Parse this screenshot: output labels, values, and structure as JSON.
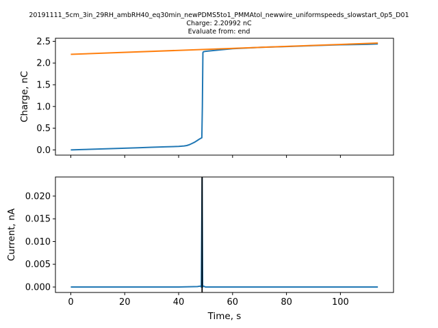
{
  "figure": {
    "title_lines": [
      "20191111_5cm_3in_29RH_ambRH40_eq30min_newPDMS5to1_PMMAtol_newwire_uniformspeeds_slowstart_0p5_D01",
      "Charge: 2.20992 nC",
      "Evaluate from: end"
    ]
  },
  "chart_data": [
    {
      "type": "line",
      "name": "charge-plot",
      "ylabel": "Charge, nC",
      "xlabel": "",
      "xlim": [
        -5.7,
        119.7
      ],
      "ylim": [
        -0.12,
        2.57
      ],
      "xticks": [
        0,
        20,
        40,
        60,
        80,
        100
      ],
      "xtick_labels_visible": false,
      "yticks": [
        0.0,
        0.5,
        1.0,
        1.5,
        2.0,
        2.5
      ],
      "ytick_labels": [
        "0.0",
        "0.5",
        "1.0",
        "1.5",
        "2.0",
        "2.5"
      ],
      "grid": false,
      "series": [
        {
          "color": "#1f77b4",
          "x": [
            0,
            5,
            10,
            15,
            20,
            25,
            30,
            35,
            40,
            42,
            43,
            44,
            45,
            46,
            47,
            48,
            48.6,
            48.8,
            49.0,
            49.2,
            50,
            55,
            60,
            70,
            80,
            90,
            100,
            110,
            113.9
          ],
          "y": [
            0.0,
            0.01,
            0.02,
            0.03,
            0.04,
            0.05,
            0.06,
            0.07,
            0.08,
            0.09,
            0.1,
            0.12,
            0.15,
            0.18,
            0.22,
            0.26,
            0.28,
            1.0,
            2.24,
            2.26,
            2.27,
            2.3,
            2.33,
            2.36,
            2.38,
            2.4,
            2.42,
            2.43,
            2.44
          ]
        },
        {
          "color": "#ff7f0e",
          "x": [
            0,
            113.9
          ],
          "y": [
            2.2,
            2.46
          ]
        }
      ]
    },
    {
      "type": "line",
      "name": "current-plot",
      "ylabel": "Current, nA",
      "xlabel": "Time, s",
      "xlim": [
        -5.7,
        119.7
      ],
      "ylim": [
        -0.0012,
        0.0242
      ],
      "xticks": [
        0,
        20,
        40,
        60,
        80,
        100
      ],
      "xtick_labels": [
        "0",
        "20",
        "40",
        "60",
        "80",
        "100"
      ],
      "yticks": [
        0.0,
        0.005,
        0.01,
        0.015,
        0.02
      ],
      "ytick_labels": [
        "0.000",
        "0.005",
        "0.010",
        "0.015",
        "0.020"
      ],
      "grid": false,
      "series": [
        {
          "color": "#1f77b4",
          "x": [
            0,
            20,
            40,
            47,
            48,
            48.4,
            48.7,
            48.9,
            49.2,
            50,
            60,
            80,
            100,
            113.9
          ],
          "y": [
            0.0,
            0.0,
            0.0,
            0.0001,
            0.0002,
            0.0,
            0.024,
            0.0,
            0.0002,
            0.0,
            0.0,
            0.0,
            0.0,
            0.0
          ]
        }
      ],
      "vline": {
        "x": 48.7,
        "color": "#000000"
      }
    }
  ]
}
